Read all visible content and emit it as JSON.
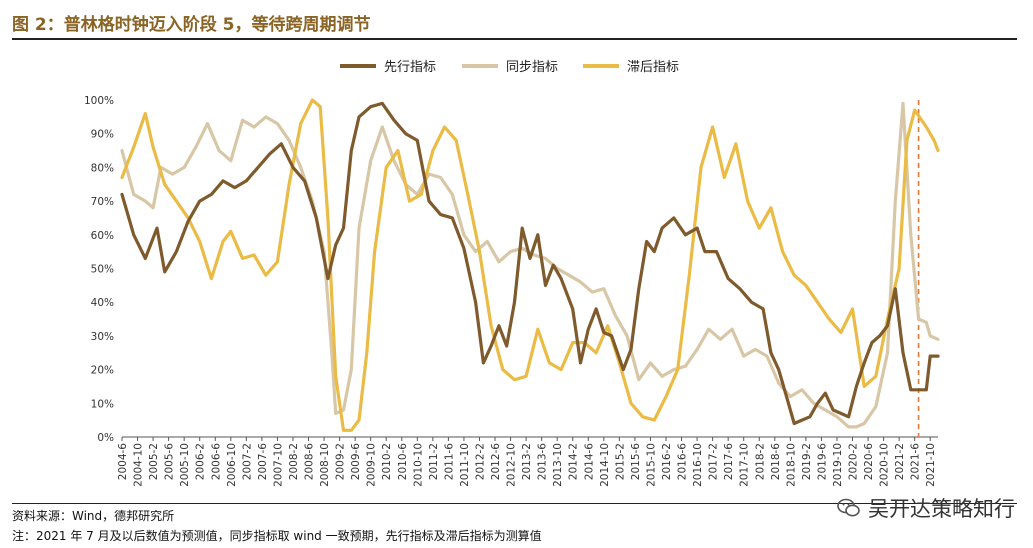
{
  "header": {
    "title": "图 2：普林格时钟迈入阶段 5，等待跨周期调节"
  },
  "footer": {
    "source": "资料来源：Wind，德邦研究所",
    "note": "注：2021 年 7 月及以后数值为预测值，同步指标取 wind 一致预期，先行指标及滞后指标为测算值"
  },
  "watermark": {
    "text": "吴开达策略知行",
    "icon": "wechat-icon"
  },
  "chart_data": {
    "type": "line",
    "title": "",
    "xlabel": "",
    "ylabel": "",
    "ylim": [
      0,
      100
    ],
    "yticks": [
      "0%",
      "10%",
      "20%",
      "30%",
      "40%",
      "50%",
      "60%",
      "70%",
      "80%",
      "90%",
      "100%"
    ],
    "x_start": "2004-06",
    "x_end": "2021-12",
    "xticks": [
      "2004-6",
      "2004-10",
      "2005-2",
      "2005-6",
      "2005-10",
      "2006-2",
      "2006-6",
      "2006-10",
      "2007-2",
      "2007-6",
      "2007-10",
      "2008-2",
      "2008-6",
      "2008-10",
      "2009-2",
      "2009-6",
      "2009-10",
      "2010-2",
      "2010-6",
      "2010-10",
      "2011-2",
      "2011-6",
      "2011-10",
      "2012-2",
      "2012-6",
      "2012-10",
      "2013-2",
      "2013-6",
      "2013-10",
      "2014-2",
      "2014-6",
      "2014-10",
      "2015-2",
      "2015-6",
      "2015-10",
      "2016-2",
      "2016-6",
      "2016-10",
      "2017-2",
      "2017-6",
      "2017-10",
      "2018-2",
      "2018-6",
      "2018-10",
      "2019-2",
      "2019-6",
      "2019-10",
      "2020-2",
      "2020-6",
      "2020-10",
      "2021-2",
      "2021-6",
      "2021-10"
    ],
    "forecast_marker": "2021-07",
    "legend_position": "top",
    "series": [
      {
        "name": "先行指标",
        "color": "#7e5a2c",
        "points": [
          [
            "2004-06",
            72
          ],
          [
            "2004-09",
            60
          ],
          [
            "2004-12",
            53
          ],
          [
            "2005-03",
            62
          ],
          [
            "2005-05",
            49
          ],
          [
            "2005-08",
            55
          ],
          [
            "2005-11",
            64
          ],
          [
            "2006-02",
            70
          ],
          [
            "2006-05",
            72
          ],
          [
            "2006-08",
            76
          ],
          [
            "2006-11",
            74
          ],
          [
            "2007-02",
            76
          ],
          [
            "2007-05",
            80
          ],
          [
            "2007-08",
            84
          ],
          [
            "2007-11",
            87
          ],
          [
            "2008-02",
            80
          ],
          [
            "2008-05",
            76
          ],
          [
            "2008-08",
            65
          ],
          [
            "2008-11",
            47
          ],
          [
            "2009-01",
            57
          ],
          [
            "2009-03",
            62
          ],
          [
            "2009-05",
            85
          ],
          [
            "2009-07",
            95
          ],
          [
            "2009-10",
            98
          ],
          [
            "2010-01",
            99
          ],
          [
            "2010-04",
            94
          ],
          [
            "2010-07",
            90
          ],
          [
            "2010-10",
            88
          ],
          [
            "2011-01",
            70
          ],
          [
            "2011-04",
            66
          ],
          [
            "2011-07",
            65
          ],
          [
            "2011-10",
            56
          ],
          [
            "2012-01",
            40
          ],
          [
            "2012-03",
            22
          ],
          [
            "2012-05",
            27
          ],
          [
            "2012-07",
            33
          ],
          [
            "2012-09",
            27
          ],
          [
            "2012-11",
            40
          ],
          [
            "2013-01",
            62
          ],
          [
            "2013-03",
            53
          ],
          [
            "2013-05",
            60
          ],
          [
            "2013-07",
            45
          ],
          [
            "2013-09",
            51
          ],
          [
            "2013-11",
            47
          ],
          [
            "2014-02",
            38
          ],
          [
            "2014-04",
            22
          ],
          [
            "2014-06",
            32
          ],
          [
            "2014-08",
            38
          ],
          [
            "2014-10",
            31
          ],
          [
            "2014-12",
            30
          ],
          [
            "2015-03",
            20
          ],
          [
            "2015-05",
            26
          ],
          [
            "2015-07",
            44
          ],
          [
            "2015-09",
            58
          ],
          [
            "2015-11",
            55
          ],
          [
            "2016-01",
            62
          ],
          [
            "2016-04",
            65
          ],
          [
            "2016-07",
            60
          ],
          [
            "2016-10",
            62
          ],
          [
            "2016-12",
            55
          ],
          [
            "2017-03",
            55
          ],
          [
            "2017-06",
            47
          ],
          [
            "2017-09",
            44
          ],
          [
            "2017-12",
            40
          ],
          [
            "2018-03",
            38
          ],
          [
            "2018-05",
            25
          ],
          [
            "2018-07",
            20
          ],
          [
            "2018-09",
            12
          ],
          [
            "2018-11",
            4
          ],
          [
            "2019-01",
            5
          ],
          [
            "2019-03",
            6
          ],
          [
            "2019-05",
            10
          ],
          [
            "2019-07",
            13
          ],
          [
            "2019-09",
            8
          ],
          [
            "2019-11",
            7
          ],
          [
            "2020-01",
            6
          ],
          [
            "2020-03",
            15
          ],
          [
            "2020-05",
            22
          ],
          [
            "2020-07",
            28
          ],
          [
            "2020-09",
            30
          ],
          [
            "2020-11",
            33
          ],
          [
            "2021-01",
            44
          ],
          [
            "2021-03",
            25
          ],
          [
            "2021-05",
            14
          ],
          [
            "2021-07",
            14
          ],
          [
            "2021-09",
            14
          ],
          [
            "2021-10",
            24
          ],
          [
            "2021-12",
            24
          ]
        ]
      },
      {
        "name": "同步指标",
        "color": "#d8c7a6",
        "points": [
          [
            "2004-06",
            85
          ],
          [
            "2004-09",
            72
          ],
          [
            "2004-12",
            70
          ],
          [
            "2005-02",
            68
          ],
          [
            "2005-04",
            80
          ],
          [
            "2005-07",
            78
          ],
          [
            "2005-10",
            80
          ],
          [
            "2006-01",
            86
          ],
          [
            "2006-04",
            93
          ],
          [
            "2006-07",
            85
          ],
          [
            "2006-10",
            82
          ],
          [
            "2007-01",
            94
          ],
          [
            "2007-04",
            92
          ],
          [
            "2007-07",
            95
          ],
          [
            "2007-10",
            93
          ],
          [
            "2008-01",
            88
          ],
          [
            "2008-04",
            80
          ],
          [
            "2008-07",
            70
          ],
          [
            "2008-10",
            55
          ],
          [
            "2008-12",
            25
          ],
          [
            "2009-01",
            7
          ],
          [
            "2009-03",
            8
          ],
          [
            "2009-05",
            20
          ],
          [
            "2009-07",
            62
          ],
          [
            "2009-10",
            82
          ],
          [
            "2010-01",
            92
          ],
          [
            "2010-04",
            82
          ],
          [
            "2010-07",
            75
          ],
          [
            "2010-10",
            72
          ],
          [
            "2011-01",
            78
          ],
          [
            "2011-04",
            77
          ],
          [
            "2011-07",
            72
          ],
          [
            "2011-10",
            60
          ],
          [
            "2012-01",
            55
          ],
          [
            "2012-04",
            58
          ],
          [
            "2012-07",
            52
          ],
          [
            "2012-10",
            55
          ],
          [
            "2013-01",
            56
          ],
          [
            "2013-04",
            54
          ],
          [
            "2013-07",
            53
          ],
          [
            "2013-10",
            50
          ],
          [
            "2014-01",
            48
          ],
          [
            "2014-04",
            46
          ],
          [
            "2014-07",
            43
          ],
          [
            "2014-10",
            44
          ],
          [
            "2015-01",
            36
          ],
          [
            "2015-04",
            30
          ],
          [
            "2015-07",
            17
          ],
          [
            "2015-10",
            22
          ],
          [
            "2016-01",
            18
          ],
          [
            "2016-04",
            20
          ],
          [
            "2016-07",
            21
          ],
          [
            "2016-10",
            26
          ],
          [
            "2017-01",
            32
          ],
          [
            "2017-04",
            29
          ],
          [
            "2017-07",
            32
          ],
          [
            "2017-10",
            24
          ],
          [
            "2018-01",
            26
          ],
          [
            "2018-04",
            24
          ],
          [
            "2018-07",
            16
          ],
          [
            "2018-10",
            12
          ],
          [
            "2019-01",
            14
          ],
          [
            "2019-04",
            10
          ],
          [
            "2019-07",
            8
          ],
          [
            "2019-10",
            6
          ],
          [
            "2020-01",
            3
          ],
          [
            "2020-03",
            3
          ],
          [
            "2020-05",
            4
          ],
          [
            "2020-08",
            9
          ],
          [
            "2020-11",
            25
          ],
          [
            "2021-01",
            70
          ],
          [
            "2021-03",
            99
          ],
          [
            "2021-05",
            60
          ],
          [
            "2021-07",
            35
          ],
          [
            "2021-09",
            34
          ],
          [
            "2021-10",
            30
          ],
          [
            "2021-12",
            29
          ]
        ]
      },
      {
        "name": "滞后指标",
        "color": "#eabb45",
        "points": [
          [
            "2004-06",
            77
          ],
          [
            "2004-09",
            86
          ],
          [
            "2004-12",
            96
          ],
          [
            "2005-02",
            86
          ],
          [
            "2005-05",
            75
          ],
          [
            "2005-08",
            70
          ],
          [
            "2005-11",
            65
          ],
          [
            "2006-02",
            58
          ],
          [
            "2006-05",
            47
          ],
          [
            "2006-08",
            58
          ],
          [
            "2006-10",
            61
          ],
          [
            "2007-01",
            53
          ],
          [
            "2007-04",
            54
          ],
          [
            "2007-07",
            48
          ],
          [
            "2007-10",
            52
          ],
          [
            "2008-01",
            75
          ],
          [
            "2008-04",
            93
          ],
          [
            "2008-07",
            100
          ],
          [
            "2008-09",
            98
          ],
          [
            "2008-11",
            65
          ],
          [
            "2009-01",
            18
          ],
          [
            "2009-03",
            2
          ],
          [
            "2009-05",
            2
          ],
          [
            "2009-07",
            5
          ],
          [
            "2009-09",
            25
          ],
          [
            "2009-11",
            55
          ],
          [
            "2010-02",
            80
          ],
          [
            "2010-05",
            85
          ],
          [
            "2010-08",
            70
          ],
          [
            "2010-11",
            72
          ],
          [
            "2011-02",
            85
          ],
          [
            "2011-05",
            92
          ],
          [
            "2011-08",
            88
          ],
          [
            "2011-11",
            72
          ],
          [
            "2012-02",
            55
          ],
          [
            "2012-05",
            33
          ],
          [
            "2012-08",
            20
          ],
          [
            "2012-11",
            17
          ],
          [
            "2013-02",
            18
          ],
          [
            "2013-05",
            32
          ],
          [
            "2013-08",
            22
          ],
          [
            "2013-11",
            20
          ],
          [
            "2014-02",
            28
          ],
          [
            "2014-05",
            28
          ],
          [
            "2014-08",
            25
          ],
          [
            "2014-11",
            33
          ],
          [
            "2015-02",
            22
          ],
          [
            "2015-05",
            10
          ],
          [
            "2015-08",
            6
          ],
          [
            "2015-11",
            5
          ],
          [
            "2016-02",
            12
          ],
          [
            "2016-05",
            20
          ],
          [
            "2016-08",
            48
          ],
          [
            "2016-11",
            80
          ],
          [
            "2017-02",
            92
          ],
          [
            "2017-05",
            77
          ],
          [
            "2017-08",
            87
          ],
          [
            "2017-11",
            70
          ],
          [
            "2018-02",
            62
          ],
          [
            "2018-05",
            68
          ],
          [
            "2018-08",
            55
          ],
          [
            "2018-11",
            48
          ],
          [
            "2019-02",
            45
          ],
          [
            "2019-05",
            40
          ],
          [
            "2019-08",
            35
          ],
          [
            "2019-11",
            31
          ],
          [
            "2020-02",
            38
          ],
          [
            "2020-05",
            15
          ],
          [
            "2020-08",
            18
          ],
          [
            "2020-11",
            35
          ],
          [
            "2021-02",
            50
          ],
          [
            "2021-04",
            88
          ],
          [
            "2021-06",
            97
          ],
          [
            "2021-09",
            92
          ],
          [
            "2021-11",
            88
          ],
          [
            "2021-12",
            85
          ]
        ]
      }
    ]
  }
}
